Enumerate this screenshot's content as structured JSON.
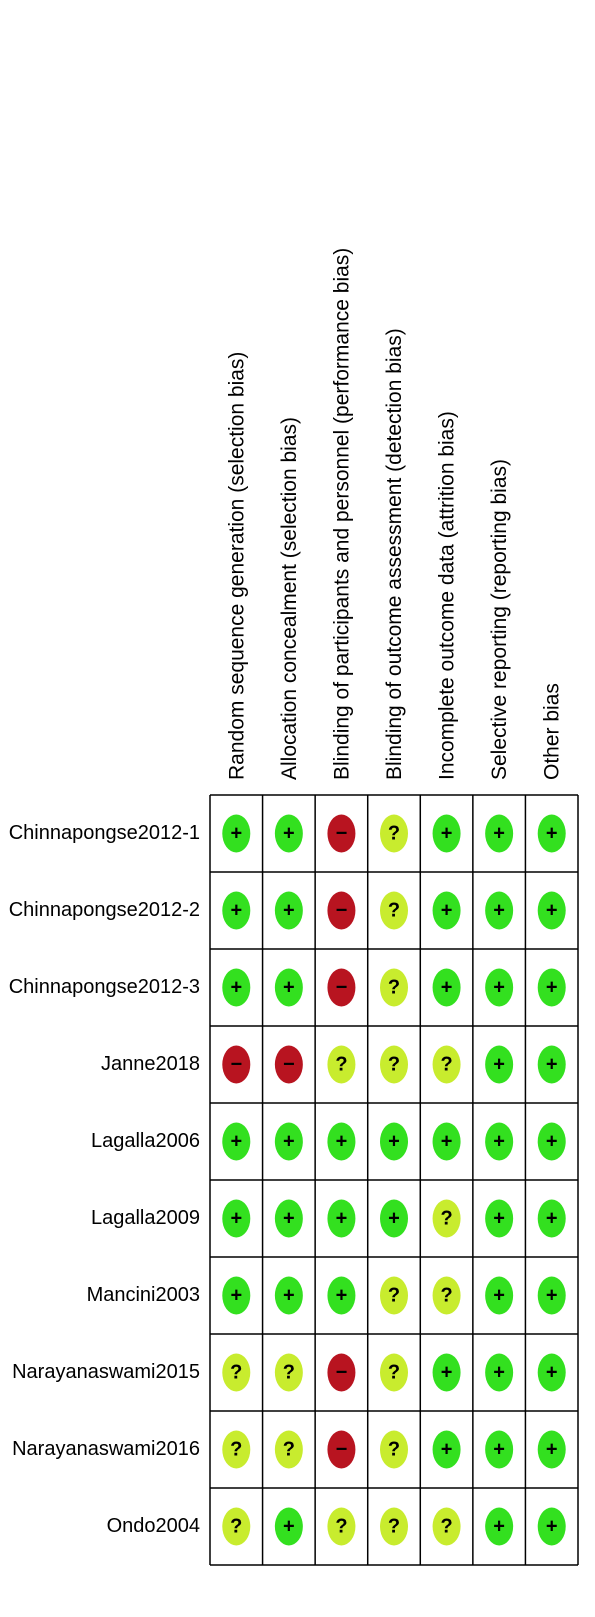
{
  "columns": [
    "Random sequence generation (selection bias)",
    "Allocation concealment (selection bias)",
    "Blinding of participants and personnel (performance bias)",
    "Blinding of outcome assessment (detection bias)",
    "Incomplete outcome data (attrition bias)",
    "Selective reporting (reporting bias)",
    "Other bias"
  ],
  "judgments": [
    {
      "symbol": "+",
      "color": "#33e01f"
    },
    {
      "symbol": "?",
      "color": "#c8ec2e"
    },
    {
      "symbol": "−",
      "color": "#b81420"
    }
  ],
  "rows": [
    {
      "study": "Chinnapongse2012-1",
      "cells": [
        "+",
        "+",
        "−",
        "?",
        "+",
        "+",
        "+"
      ]
    },
    {
      "study": "Chinnapongse2012-2",
      "cells": [
        "+",
        "+",
        "−",
        "?",
        "+",
        "+",
        "+"
      ]
    },
    {
      "study": "Chinnapongse2012-3",
      "cells": [
        "+",
        "+",
        "−",
        "?",
        "+",
        "+",
        "+"
      ]
    },
    {
      "study": "Janne2018",
      "cells": [
        "−",
        "−",
        "?",
        "?",
        "?",
        "+",
        "+"
      ]
    },
    {
      "study": "Lagalla2006",
      "cells": [
        "+",
        "+",
        "+",
        "+",
        "+",
        "+",
        "+"
      ]
    },
    {
      "study": "Lagalla2009",
      "cells": [
        "+",
        "+",
        "+",
        "+",
        "?",
        "+",
        "+"
      ]
    },
    {
      "study": "Mancini2003",
      "cells": [
        "+",
        "+",
        "+",
        "?",
        "?",
        "+",
        "+"
      ]
    },
    {
      "study": "Narayanaswami2015",
      "cells": [
        "?",
        "?",
        "−",
        "?",
        "+",
        "+",
        "+"
      ]
    },
    {
      "study": "Narayanaswami2016",
      "cells": [
        "?",
        "?",
        "−",
        "?",
        "+",
        "+",
        "+"
      ]
    },
    {
      "study": "Ondo2004",
      "cells": [
        "?",
        "+",
        "?",
        "?",
        "?",
        "+",
        "+"
      ]
    }
  ]
}
